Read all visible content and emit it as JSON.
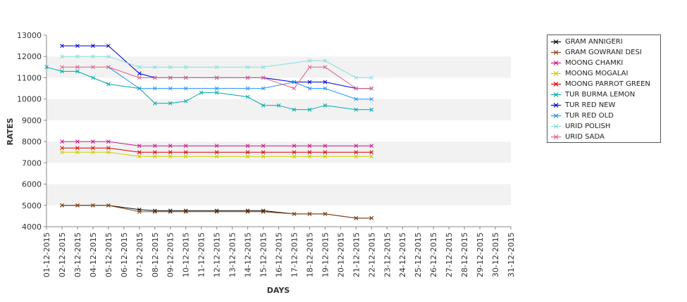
{
  "chart_data": {
    "type": "line",
    "xlabel": "DAYS",
    "ylabel": "RATES",
    "ylim": [
      4000,
      13000
    ],
    "yticks": [
      4000,
      5000,
      6000,
      7000,
      8000,
      9000,
      10000,
      11000,
      12000,
      13000
    ],
    "categories": [
      "01-12-2015",
      "02-12-2015",
      "03-12-2015",
      "04-12-2015",
      "05-12-2015",
      "06-12-2015",
      "07-12-2015",
      "08-12-2015",
      "09-12-2015",
      "10-12-2015",
      "11-12-2015",
      "12-12-2015",
      "13-12-2015",
      "14-12-2015",
      "15-12-2015",
      "16-12-2015",
      "17-12-2015",
      "18-12-2015",
      "19-12-2015",
      "20-12-2015",
      "21-12-2015",
      "22-12-2015",
      "23-12-2015",
      "24-12-2015",
      "25-12-2015",
      "26-12-2015",
      "27-12-2015",
      "28-12-2015",
      "29-12-2015",
      "30-12-2015",
      "31-12-2015"
    ],
    "grid": "alternating horizontal bands",
    "legend_position": "right",
    "series": [
      {
        "name": "GRAM ANNIGERI",
        "color": "#000000",
        "points": [
          [
            1,
            5000
          ],
          [
            2,
            5000
          ],
          [
            3,
            5000
          ],
          [
            4,
            5000
          ],
          [
            6,
            4800
          ],
          [
            7,
            4750
          ],
          [
            8,
            4750
          ],
          [
            9,
            4750
          ],
          [
            11,
            4750
          ],
          [
            13,
            4750
          ],
          [
            14,
            4750
          ],
          [
            16,
            4600
          ],
          [
            17,
            4600
          ],
          [
            18,
            4600
          ],
          [
            20,
            4400
          ],
          [
            21,
            4400
          ]
        ]
      },
      {
        "name": "GRAM GOWRANI DESI",
        "color": "#8b4513",
        "points": [
          [
            1,
            5000
          ],
          [
            2,
            5000
          ],
          [
            3,
            5000
          ],
          [
            4,
            5000
          ],
          [
            6,
            4700
          ],
          [
            7,
            4700
          ],
          [
            8,
            4700
          ],
          [
            9,
            4700
          ],
          [
            11,
            4700
          ],
          [
            13,
            4700
          ],
          [
            14,
            4700
          ],
          [
            16,
            4600
          ],
          [
            17,
            4600
          ],
          [
            18,
            4600
          ],
          [
            20,
            4400
          ],
          [
            21,
            4400
          ]
        ]
      },
      {
        "name": "MOONG CHAMKI",
        "color": "#c71585",
        "points": [
          [
            1,
            8000
          ],
          [
            2,
            8000
          ],
          [
            3,
            8000
          ],
          [
            4,
            8000
          ],
          [
            6,
            7800
          ],
          [
            7,
            7800
          ],
          [
            8,
            7800
          ],
          [
            9,
            7800
          ],
          [
            11,
            7800
          ],
          [
            13,
            7800
          ],
          [
            14,
            7800
          ],
          [
            16,
            7800
          ],
          [
            17,
            7800
          ],
          [
            18,
            7800
          ],
          [
            20,
            7800
          ],
          [
            21,
            7800
          ]
        ]
      },
      {
        "name": "MOONG MOGALAI",
        "color": "#cccc00",
        "points": [
          [
            1,
            7500
          ],
          [
            2,
            7500
          ],
          [
            3,
            7500
          ],
          [
            4,
            7500
          ],
          [
            6,
            7300
          ],
          [
            7,
            7300
          ],
          [
            8,
            7300
          ],
          [
            9,
            7300
          ],
          [
            11,
            7300
          ],
          [
            13,
            7300
          ],
          [
            14,
            7300
          ],
          [
            16,
            7300
          ],
          [
            17,
            7300
          ],
          [
            18,
            7300
          ],
          [
            20,
            7300
          ],
          [
            21,
            7300
          ]
        ]
      },
      {
        "name": "MOONG PARROT GREEN",
        "color": "#dd0000",
        "points": [
          [
            1,
            7700
          ],
          [
            2,
            7700
          ],
          [
            3,
            7700
          ],
          [
            4,
            7700
          ],
          [
            6,
            7500
          ],
          [
            7,
            7500
          ],
          [
            8,
            7500
          ],
          [
            9,
            7500
          ],
          [
            11,
            7500
          ],
          [
            13,
            7500
          ],
          [
            14,
            7500
          ],
          [
            16,
            7500
          ],
          [
            17,
            7500
          ],
          [
            18,
            7500
          ],
          [
            20,
            7500
          ],
          [
            21,
            7500
          ]
        ]
      },
      {
        "name": "TUR BURMA LEMON",
        "color": "#00aaaa",
        "points": [
          [
            0,
            11500
          ],
          [
            1,
            11300
          ],
          [
            2,
            11300
          ],
          [
            3,
            11000
          ],
          [
            4,
            10700
          ],
          [
            6,
            10500
          ],
          [
            7,
            9800
          ],
          [
            8,
            9800
          ],
          [
            9,
            9900
          ],
          [
            10,
            10300
          ],
          [
            11,
            10300
          ],
          [
            13,
            10100
          ],
          [
            14,
            9700
          ],
          [
            15,
            9700
          ],
          [
            16,
            9500
          ],
          [
            17,
            9500
          ],
          [
            18,
            9700
          ],
          [
            20,
            9500
          ],
          [
            21,
            9500
          ]
        ]
      },
      {
        "name": "TUR RED NEW",
        "color": "#0000cc",
        "points": [
          [
            1,
            12500
          ],
          [
            2,
            12500
          ],
          [
            3,
            12500
          ],
          [
            4,
            12500
          ],
          [
            6,
            11200
          ],
          [
            7,
            11000
          ],
          [
            8,
            11000
          ],
          [
            9,
            11000
          ],
          [
            11,
            11000
          ],
          [
            13,
            11000
          ],
          [
            14,
            11000
          ],
          [
            16,
            10800
          ],
          [
            17,
            10800
          ],
          [
            18,
            10800
          ],
          [
            20,
            10500
          ],
          [
            21,
            10500
          ]
        ]
      },
      {
        "name": "TUR RED OLD",
        "color": "#1e90ff",
        "points": [
          [
            4,
            11500
          ],
          [
            6,
            10500
          ],
          [
            7,
            10500
          ],
          [
            8,
            10500
          ],
          [
            9,
            10500
          ],
          [
            11,
            10500
          ],
          [
            13,
            10500
          ],
          [
            14,
            10500
          ],
          [
            16,
            10800
          ],
          [
            17,
            10500
          ],
          [
            18,
            10500
          ],
          [
            20,
            10000
          ],
          [
            21,
            10000
          ]
        ]
      },
      {
        "name": "URID POLISH",
        "color": "#88dddd",
        "points": [
          [
            1,
            12000
          ],
          [
            2,
            12000
          ],
          [
            3,
            12000
          ],
          [
            4,
            12000
          ],
          [
            6,
            11500
          ],
          [
            7,
            11500
          ],
          [
            8,
            11500
          ],
          [
            9,
            11500
          ],
          [
            11,
            11500
          ],
          [
            13,
            11500
          ],
          [
            14,
            11500
          ],
          [
            17,
            11800
          ],
          [
            18,
            11800
          ],
          [
            20,
            11000
          ],
          [
            21,
            11000
          ]
        ]
      },
      {
        "name": "URID SADA",
        "color": "#e0607e",
        "points": [
          [
            1,
            11500
          ],
          [
            2,
            11500
          ],
          [
            3,
            11500
          ],
          [
            4,
            11500
          ],
          [
            6,
            11000
          ],
          [
            7,
            11000
          ],
          [
            8,
            11000
          ],
          [
            9,
            11000
          ],
          [
            11,
            11000
          ],
          [
            13,
            11000
          ],
          [
            14,
            11000
          ],
          [
            16,
            10500
          ],
          [
            17,
            11500
          ],
          [
            18,
            11500
          ],
          [
            20,
            10500
          ],
          [
            21,
            10500
          ]
        ]
      }
    ]
  }
}
